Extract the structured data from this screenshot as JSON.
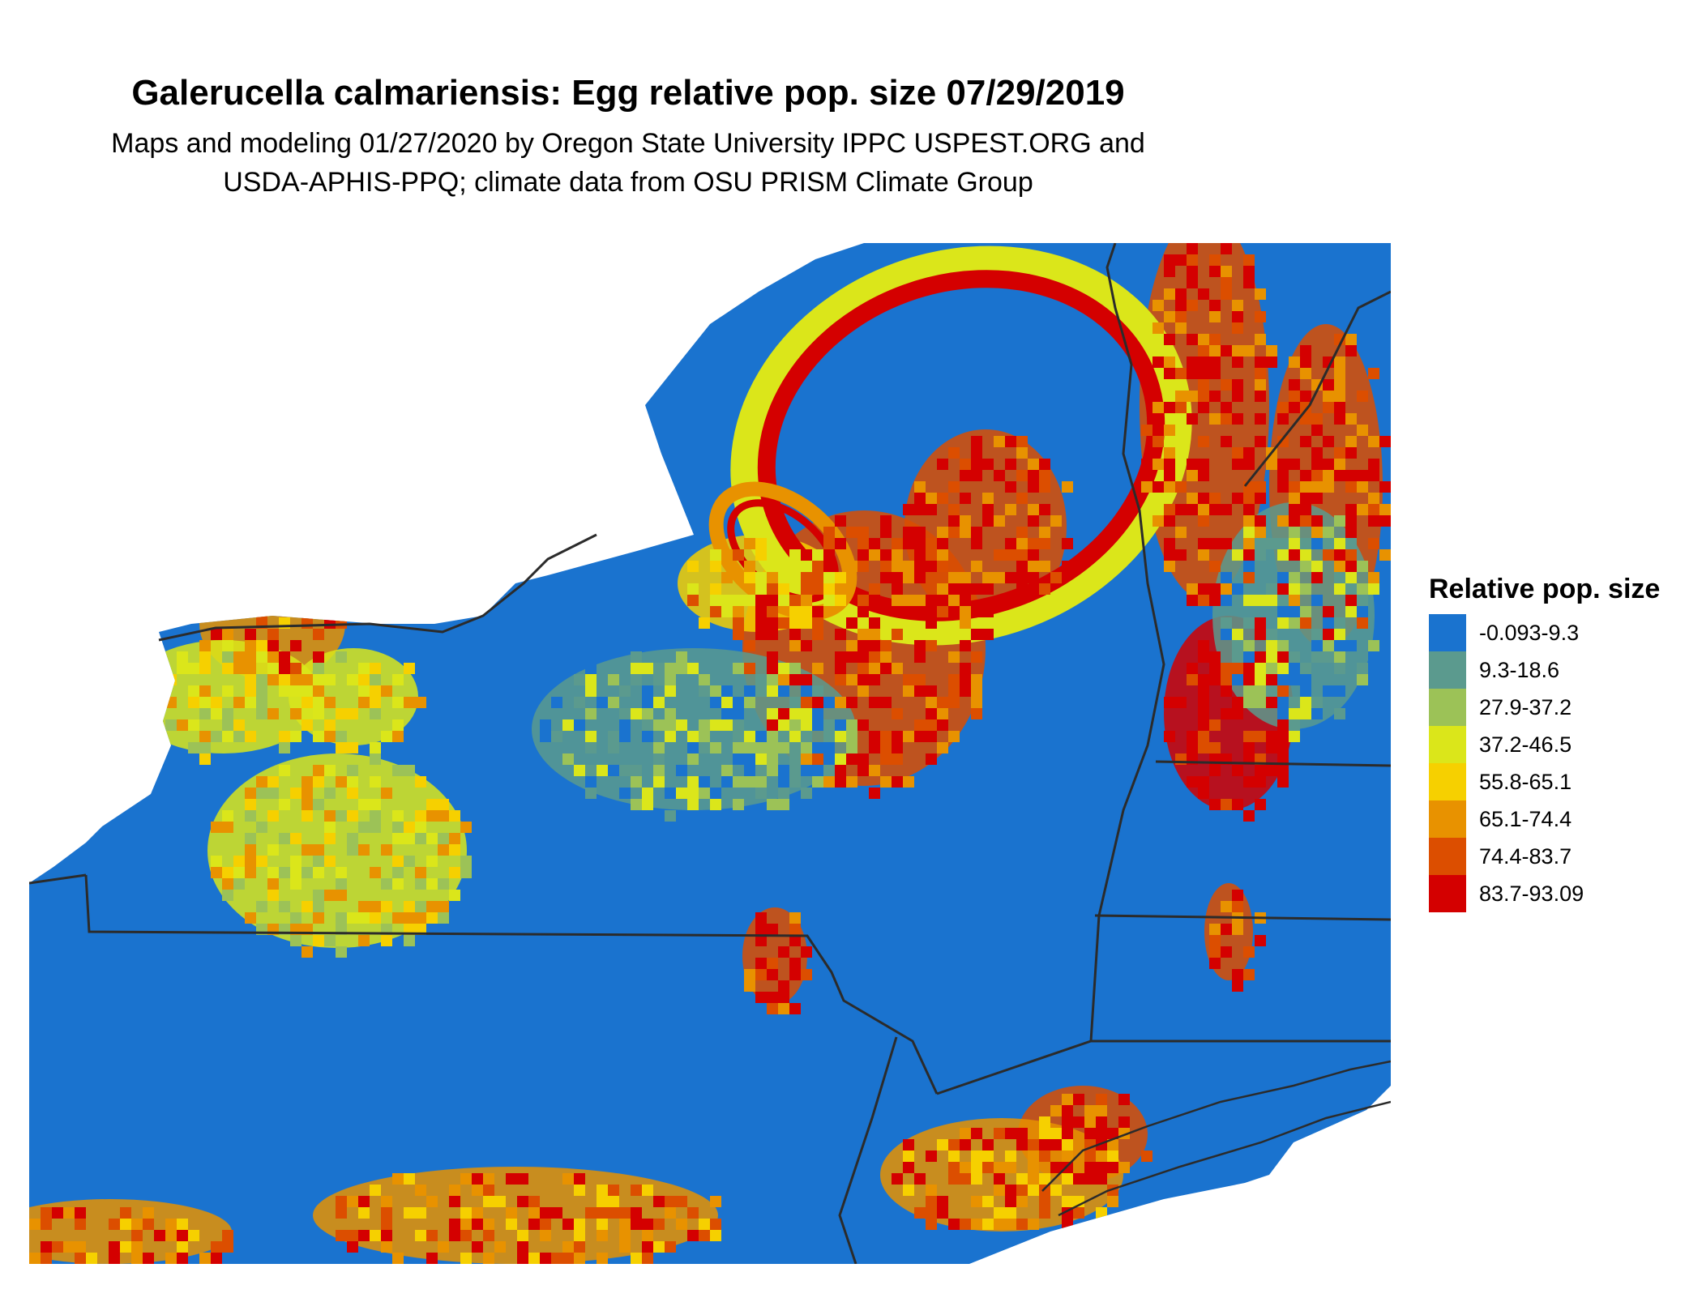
{
  "title": "Galerucella calmariensis: Egg relative pop. size 07/29/2019",
  "subtitle_line1": "Maps and modeling 01/27/2020 by Oregon State University IPPC USPEST.ORG and",
  "subtitle_line2": "USDA-APHIS-PPQ; climate data from OSU PRISM Climate Group",
  "legend": {
    "title": "Relative pop. size",
    "items": [
      {
        "label": "-0.093-9.3",
        "color": "#1a73cf"
      },
      {
        "label": "9.3-18.6",
        "color": "#5b9a8e"
      },
      {
        "label": "27.9-37.2",
        "color": "#9cc257"
      },
      {
        "label": "37.2-46.5",
        "color": "#dbe61a"
      },
      {
        "label": "55.8-65.1",
        "color": "#f6d000"
      },
      {
        "label": "65.1-74.4",
        "color": "#e89200"
      },
      {
        "label": "74.4-83.7",
        "color": "#dc4e00"
      },
      {
        "label": "83.7-93.09",
        "color": "#d40000"
      }
    ]
  }
}
